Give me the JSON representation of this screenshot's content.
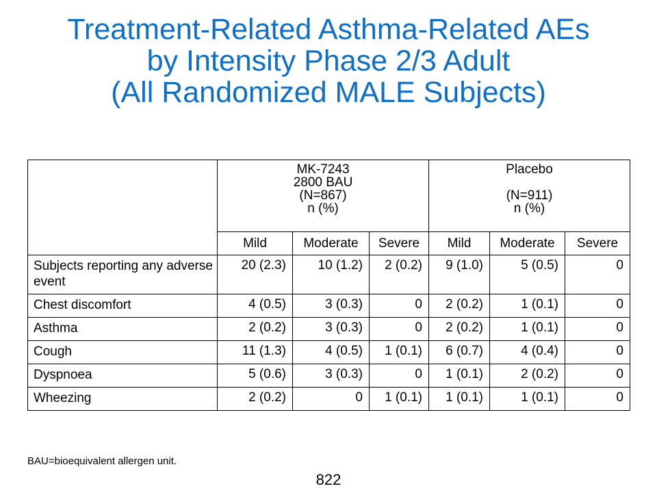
{
  "title": {
    "line1": "Treatment-Related Asthma-Related AEs",
    "line2": "by Intensity Phase 2/3 Adult",
    "line3": "(All Randomized MALE Subjects)"
  },
  "table": {
    "groups": [
      {
        "label": "MK-7243\n2800 BAU\n(N=867)\nn (%)"
      },
      {
        "label": "Placebo\n\n(N=911)\nn (%)"
      }
    ],
    "subheaders": [
      "Mild",
      "Moderate",
      "Severe",
      "Mild",
      "Moderate",
      "Severe"
    ],
    "rows": [
      {
        "label": "Subjects reporting any adverse event",
        "values": [
          "20 (2.3)",
          "10 (1.2)",
          "2 (0.2)",
          "9 (1.0)",
          "5 (0.5)",
          "0"
        ]
      },
      {
        "label": "Chest discomfort",
        "values": [
          "4 (0.5)",
          "3 (0.3)",
          "0",
          "2 (0.2)",
          "1 (0.1)",
          "0"
        ]
      },
      {
        "label": "Asthma",
        "values": [
          "2 (0.2)",
          "3 (0.3)",
          "0",
          "2 (0.2)",
          "1 (0.1)",
          "0"
        ]
      },
      {
        "label": "Cough",
        "values": [
          "11 (1.3)",
          "4 (0.5)",
          "1 (0.1)",
          "6 (0.7)",
          "4 (0.4)",
          "0"
        ]
      },
      {
        "label": "Dyspnoea",
        "values": [
          "5 (0.6)",
          "3 (0.3)",
          "0",
          "1 (0.1)",
          "2 (0.2)",
          "0"
        ]
      },
      {
        "label": "Wheezing",
        "values": [
          "2 (0.2)",
          "0",
          "1 (0.1)",
          "1 (0.1)",
          "1 (0.1)",
          "0"
        ]
      }
    ]
  },
  "footnote": "BAU=bioequivalent allergen unit.",
  "page_number": "822",
  "colors": {
    "title": "#0f6fc6",
    "header_rule": "#1f6fc7"
  }
}
